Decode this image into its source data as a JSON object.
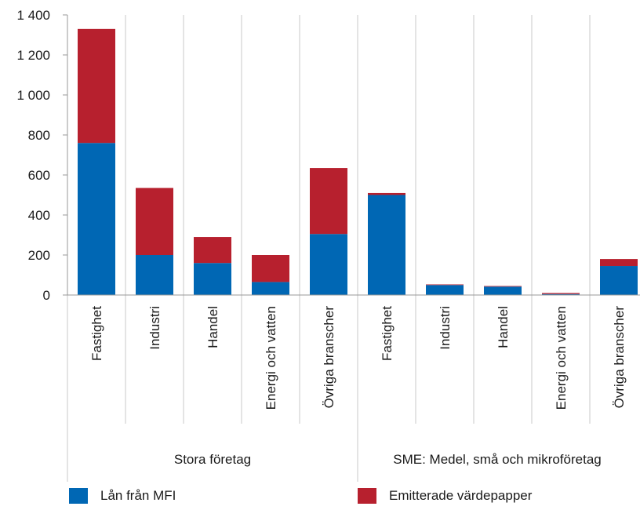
{
  "chart_data": {
    "type": "bar",
    "stacked": true,
    "categories": [
      "Fastighet",
      "Industri",
      "Handel",
      "Energi och vatten",
      "Övriga branscher",
      "Fastighet",
      "Industri",
      "Handel",
      "Energi och vatten",
      "Övriga branscher"
    ],
    "groups": [
      {
        "label": "Stora företag",
        "categories": [
          "Fastighet",
          "Industri",
          "Handel",
          "Energi och vatten",
          "Övriga branscher"
        ]
      },
      {
        "label": "SME: Medel, små och mikroföretag",
        "categories": [
          "Fastighet",
          "Industri",
          "Handel",
          "Energi och vatten",
          "Övriga branscher"
        ]
      }
    ],
    "series": [
      {
        "name": "Lån från MFI",
        "color": "#0067b4",
        "values": [
          760,
          200,
          160,
          65,
          305,
          500,
          50,
          42,
          5,
          145
        ]
      },
      {
        "name": "Emitterade värdepapper",
        "color": "#b7202e",
        "values": [
          570,
          335,
          130,
          135,
          330,
          10,
          3,
          3,
          5,
          35
        ]
      }
    ],
    "yticks": [
      "0",
      "200",
      "400",
      "600",
      "800",
      "1 000",
      "1 200",
      "1 400"
    ],
    "ylim": [
      0,
      1400
    ],
    "grid": "vertical",
    "legend_position": "bottom"
  }
}
